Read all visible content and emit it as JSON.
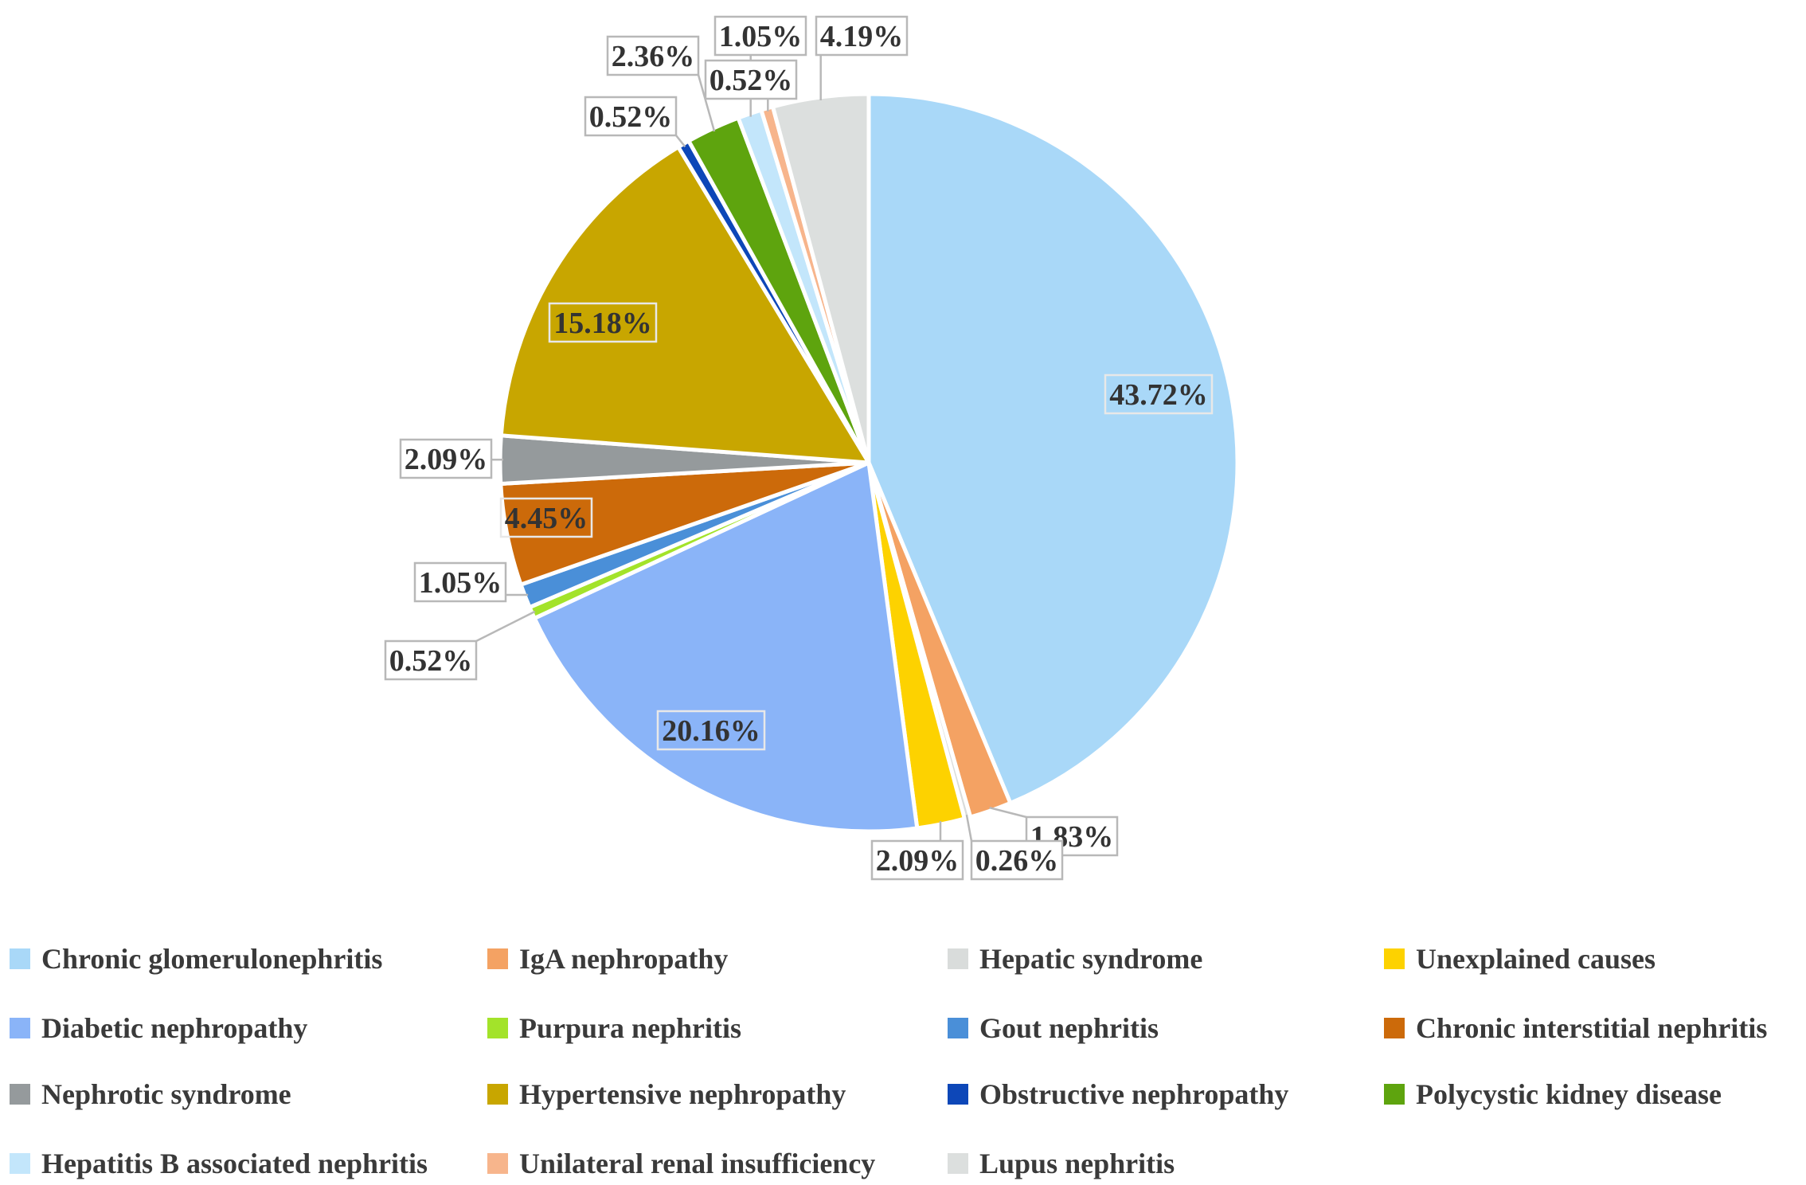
{
  "chart_data": {
    "type": "pie",
    "title": "",
    "slices": [
      {
        "name": "Chronic glomerulonephritis",
        "value": 43.72,
        "label": "43.72%",
        "color": "#a9d8f8"
      },
      {
        "name": "IgA nephropathy",
        "value": 1.83,
        "label": "1.83%",
        "color": "#f4a263"
      },
      {
        "name": "Hepatic syndrome",
        "value": 0.26,
        "label": "0.26%",
        "color": "#d9dcdb"
      },
      {
        "name": "Unexplained causes",
        "value": 2.09,
        "label": "2.09%",
        "color": "#fdd200"
      },
      {
        "name": "Diabetic nephropathy",
        "value": 20.16,
        "label": "20.16%",
        "color": "#8ab4f8"
      },
      {
        "name": "Purpura nephritis",
        "value": 0.52,
        "label": "0.52%",
        "color": "#a3e32a"
      },
      {
        "name": "Gout nephritis",
        "value": 1.05,
        "label": "1.05%",
        "color": "#4a8fd8"
      },
      {
        "name": "Chronic interstitial nephritis",
        "value": 4.45,
        "label": "4.45%",
        "color": "#cc6a0a"
      },
      {
        "name": "Nephrotic syndrome",
        "value": 2.09,
        "label": "2.09%",
        "color": "#959a9c"
      },
      {
        "name": "Hypertensive nephropathy",
        "value": 15.18,
        "label": "15.18%",
        "color": "#c8a600"
      },
      {
        "name": "Obstructive nephropathy",
        "value": 0.52,
        "label": "0.52%",
        "color": "#0d47b8"
      },
      {
        "name": "Polycystic kidney disease",
        "value": 2.36,
        "label": "2.36%",
        "color": "#5ea40e"
      },
      {
        "name": "Hepatitis B associated nephritis",
        "value": 1.05,
        "label": "1.05%",
        "color": "#c3e6fb"
      },
      {
        "name": "Unilateral renal insufficiency",
        "value": 0.52,
        "label": "0.52%",
        "color": "#f7b58c"
      },
      {
        "name": "Lupus nephritis",
        "value": 4.19,
        "label": "4.19%",
        "color": "#dcdfde"
      }
    ],
    "legend_position": "bottom"
  }
}
